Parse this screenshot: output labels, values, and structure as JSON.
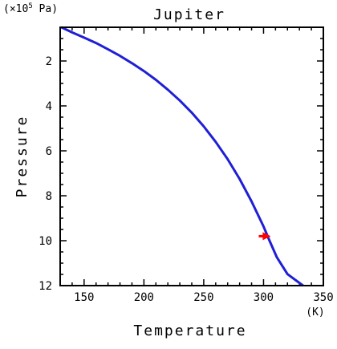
{
  "chart_data": {
    "type": "line",
    "title": "Jupiter",
    "xlabel": "Temperature",
    "ylabel": "Pressure",
    "x_unit": "(K)",
    "y_unit_prefix": "(×10",
    "y_unit_exp": "5",
    "y_unit_suffix": " Pa)",
    "xlim": [
      130,
      350
    ],
    "ylim": [
      0.5,
      12
    ],
    "y_inverted": true,
    "x_ticks": [
      150,
      200,
      250,
      300,
      350
    ],
    "y_ticks": [
      2,
      4,
      6,
      8,
      10,
      12
    ],
    "grid": false,
    "series": [
      {
        "color": "#1f1fd6",
        "x": [
          131,
          140,
          150,
          160,
          170,
          180,
          190,
          200,
          210,
          220,
          230,
          240,
          250,
          260,
          270,
          280,
          290,
          300,
          305,
          311,
          320,
          333
        ],
        "y": [
          0.5,
          0.73,
          0.96,
          1.2,
          1.48,
          1.77,
          2.1,
          2.45,
          2.84,
          3.28,
          3.76,
          4.3,
          4.91,
          5.6,
          6.37,
          7.25,
          8.25,
          9.37,
          10.0,
          10.73,
          11.49,
          12.0
        ]
      }
    ],
    "annotations": [
      {
        "type": "arrow",
        "color": "#ff0000",
        "x_from": 296,
        "x_to": 306,
        "y": 9.8
      }
    ]
  }
}
